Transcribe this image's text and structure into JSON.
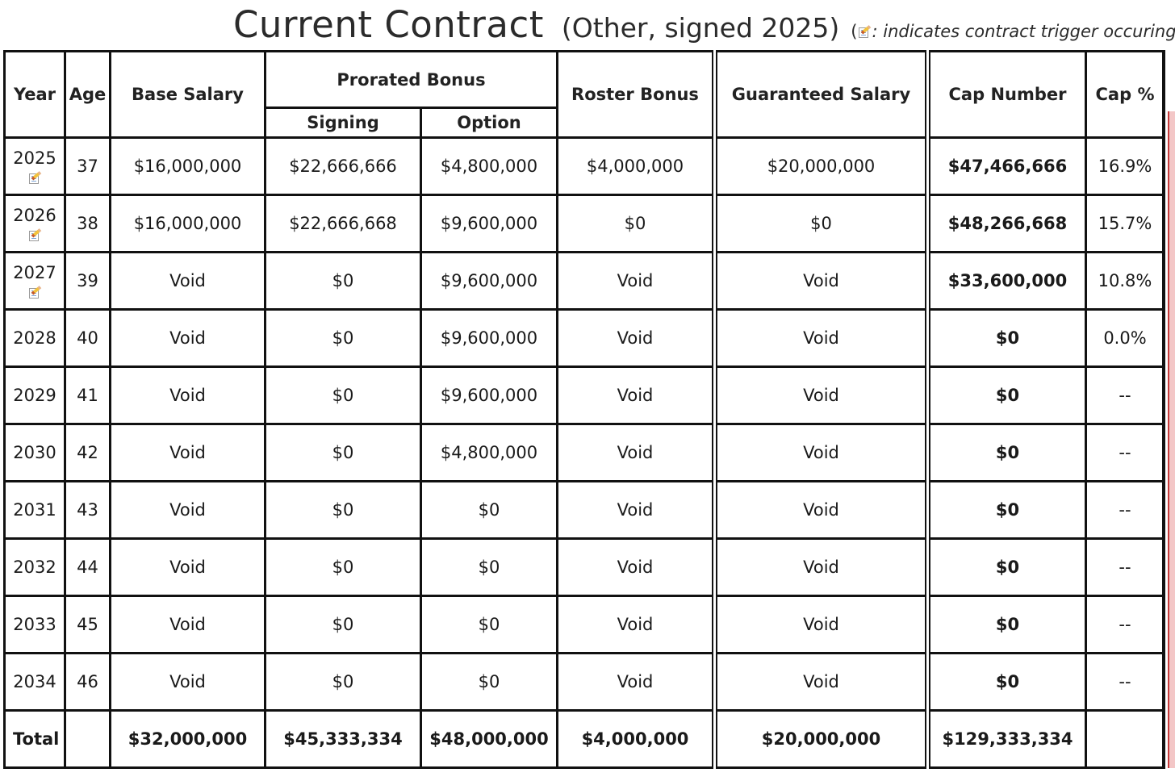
{
  "title": {
    "main": "Current Contract",
    "sub": "(Other, signed 2025)",
    "note_open": "(",
    "note_text": ": indicates contract trigger occuring during"
  },
  "headers": {
    "year": "Year",
    "age": "Age",
    "base_salary": "Base Salary",
    "prorated_bonus": "Prorated Bonus",
    "signing": "Signing",
    "option": "Option",
    "roster_bonus": "Roster Bonus",
    "guaranteed_salary": "Guaranteed Salary",
    "cap_number": "Cap Number",
    "cap_pct": "Cap %"
  },
  "rows": [
    {
      "year": "2025",
      "trigger": true,
      "age": "37",
      "base_salary": "$16,000,000",
      "signing": "$22,666,666",
      "option": "$4,800,000",
      "roster_bonus": "$4,000,000",
      "guaranteed_salary": "$20,000,000",
      "cap_number": "$47,466,666",
      "cap_pct": "16.9%"
    },
    {
      "year": "2026",
      "trigger": true,
      "age": "38",
      "base_salary": "$16,000,000",
      "signing": "$22,666,668",
      "option": "$9,600,000",
      "roster_bonus": "$0",
      "guaranteed_salary": "$0",
      "cap_number": "$48,266,668",
      "cap_pct": "15.7%"
    },
    {
      "year": "2027",
      "trigger": true,
      "age": "39",
      "base_salary": "Void",
      "signing": "$0",
      "option": "$9,600,000",
      "roster_bonus": "Void",
      "guaranteed_salary": "Void",
      "cap_number": "$33,600,000",
      "cap_pct": "10.8%"
    },
    {
      "year": "2028",
      "trigger": false,
      "age": "40",
      "base_salary": "Void",
      "signing": "$0",
      "option": "$9,600,000",
      "roster_bonus": "Void",
      "guaranteed_salary": "Void",
      "cap_number": "$0",
      "cap_pct": "0.0%"
    },
    {
      "year": "2029",
      "trigger": false,
      "age": "41",
      "base_salary": "Void",
      "signing": "$0",
      "option": "$9,600,000",
      "roster_bonus": "Void",
      "guaranteed_salary": "Void",
      "cap_number": "$0",
      "cap_pct": "--"
    },
    {
      "year": "2030",
      "trigger": false,
      "age": "42",
      "base_salary": "Void",
      "signing": "$0",
      "option": "$4,800,000",
      "roster_bonus": "Void",
      "guaranteed_salary": "Void",
      "cap_number": "$0",
      "cap_pct": "--"
    },
    {
      "year": "2031",
      "trigger": false,
      "age": "43",
      "base_salary": "Void",
      "signing": "$0",
      "option": "$0",
      "roster_bonus": "Void",
      "guaranteed_salary": "Void",
      "cap_number": "$0",
      "cap_pct": "--"
    },
    {
      "year": "2032",
      "trigger": false,
      "age": "44",
      "base_salary": "Void",
      "signing": "$0",
      "option": "$0",
      "roster_bonus": "Void",
      "guaranteed_salary": "Void",
      "cap_number": "$0",
      "cap_pct": "--"
    },
    {
      "year": "2033",
      "trigger": false,
      "age": "45",
      "base_salary": "Void",
      "signing": "$0",
      "option": "$0",
      "roster_bonus": "Void",
      "guaranteed_salary": "Void",
      "cap_number": "$0",
      "cap_pct": "--"
    },
    {
      "year": "2034",
      "trigger": false,
      "age": "46",
      "base_salary": "Void",
      "signing": "$0",
      "option": "$0",
      "roster_bonus": "Void",
      "guaranteed_salary": "Void",
      "cap_number": "$0",
      "cap_pct": "--"
    }
  ],
  "totals": {
    "label": "Total",
    "age": "",
    "base_salary": "$32,000,000",
    "signing": "$45,333,334",
    "option": "$48,000,000",
    "roster_bonus": "$4,000,000",
    "guaranteed_salary": "$20,000,000",
    "cap_number": "$129,333,334",
    "cap_pct": ""
  },
  "icons": {
    "trigger": "contract-trigger-icon"
  },
  "colors": {
    "border": "#111111",
    "side_strip": "#f3c7c7"
  }
}
